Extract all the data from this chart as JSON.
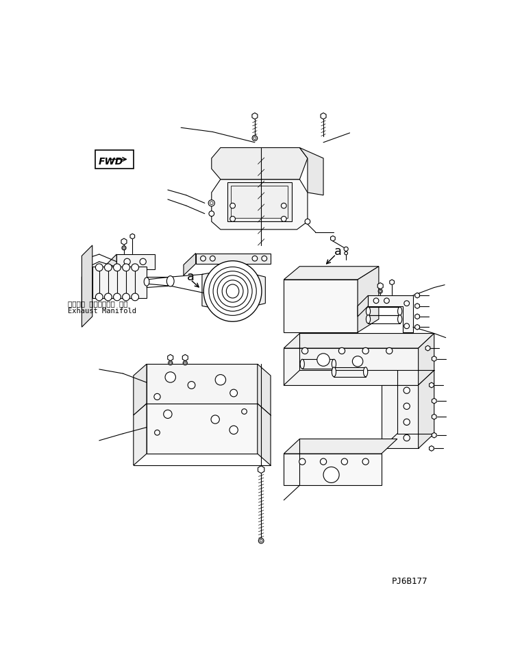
{
  "background_color": "#ffffff",
  "line_color": "#000000",
  "exhaust_manifold_jp": "エキゾー ストマニホー ルド",
  "exhaust_manifold_en": "Exhaust Manifold",
  "part_number": "PJ6B177",
  "fwd_text": "FWD",
  "label_a": "a"
}
